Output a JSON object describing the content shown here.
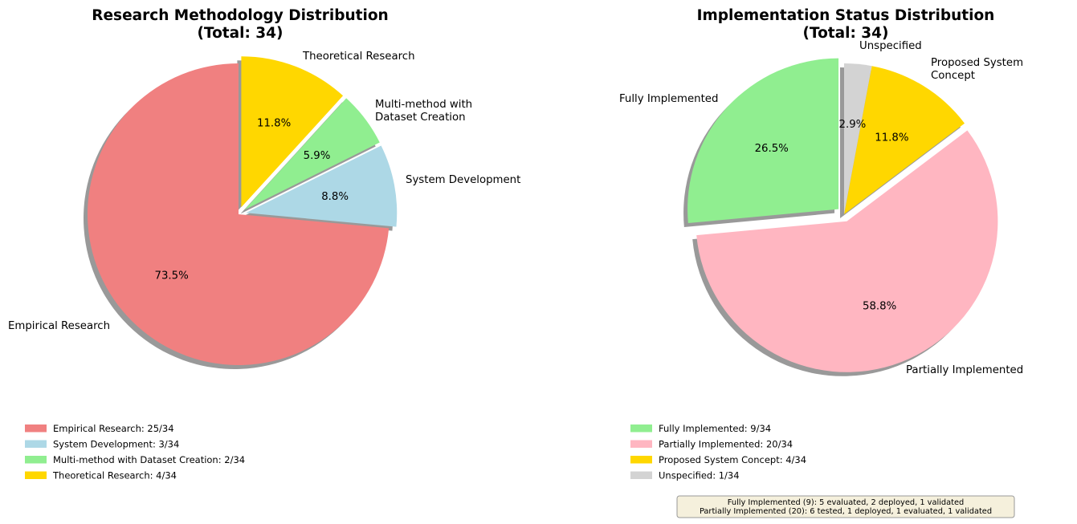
{
  "chart_data": [
    {
      "type": "pie",
      "title": "Research Methodology Distribution",
      "subtitle": "(Total: 34)",
      "total": 34,
      "start_angle_deg": 90,
      "direction": "counterclockwise",
      "shadow": true,
      "slices": [
        {
          "label": "Empirical Research",
          "value": 25,
          "percent_label": "73.5%",
          "legend": "Empirical Research: 25/34",
          "color": "#f08080",
          "explode": 0
        },
        {
          "label": "System Development",
          "value": 3,
          "percent_label": "8.8%",
          "legend": "System Development: 3/34",
          "color": "#add8e6",
          "explode": 0.05
        },
        {
          "label": "Multi-method with\nDataset Creation",
          "value": 2,
          "percent_label": "5.9%",
          "legend": "Multi-method with Dataset Creation: 2/34",
          "color": "#90ee90",
          "explode": 0.05
        },
        {
          "label": "Theoretical Research",
          "value": 4,
          "percent_label": "11.8%",
          "legend": "Theoretical Research: 4/34",
          "color": "#ffd700",
          "explode": 0.05
        }
      ],
      "legend_position": "bottom-left"
    },
    {
      "type": "pie",
      "title": "Implementation Status Distribution",
      "subtitle": "(Total: 34)",
      "total": 34,
      "start_angle_deg": 90,
      "direction": "counterclockwise",
      "shadow": true,
      "slices": [
        {
          "label": "Fully Implemented",
          "value": 9,
          "percent_label": "26.5%",
          "legend": "Fully Implemented: 9/34",
          "color": "#90ee90",
          "explode": 0.05
        },
        {
          "label": "Partially Implemented",
          "value": 20,
          "percent_label": "58.8%",
          "legend": "Partially Implemented: 20/34",
          "color": "#ffb6c1",
          "explode": 0.05
        },
        {
          "label": "Proposed System\nConcept",
          "value": 4,
          "percent_label": "11.8%",
          "legend": "Proposed System Concept: 4/34",
          "color": "#ffd700",
          "explode": 0
        },
        {
          "label": "Unspecified",
          "value": 1,
          "percent_label": "2.9%",
          "legend": "Unspecified: 1/34",
          "color": "#d3d3d3",
          "explode": 0
        }
      ],
      "legend_position": "bottom-left",
      "note": [
        "Fully Implemented (9): 5 evaluated, 2 deployed, 1 validated",
        "Partially Implemented (20): 6 tested, 1 deployed, 1 evaluated, 1 validated"
      ]
    }
  ]
}
